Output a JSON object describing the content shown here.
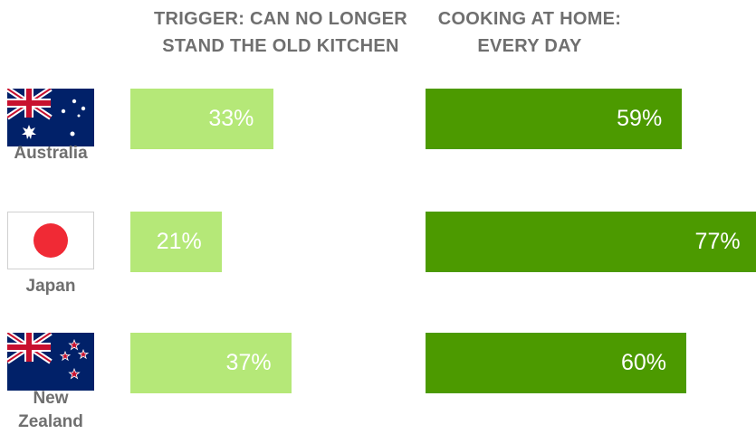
{
  "chart_data": [
    {
      "type": "bar",
      "orientation": "horizontal",
      "title": "TRIGGER: CAN NO LONGER\nSTAND THE OLD KITCHEN",
      "categories": [
        "Australia",
        "Japan",
        "New Zealand"
      ],
      "values": [
        33,
        21,
        37
      ],
      "value_labels": [
        "33%",
        "21%",
        "37%"
      ],
      "unit": "%",
      "color": "#b5e878",
      "xlim": [
        0,
        100
      ]
    },
    {
      "type": "bar",
      "orientation": "horizontal",
      "title": "COOKING AT HOME:\nEVERY DAY",
      "categories": [
        "Australia",
        "Japan",
        "New Zealand"
      ],
      "values": [
        59,
        77,
        60
      ],
      "value_labels": [
        "59%",
        "77%",
        "60%"
      ],
      "unit": "%",
      "color": "#4c9a00",
      "xlim": [
        0,
        100
      ]
    }
  ],
  "countries": [
    {
      "label": "Australia",
      "flag_icon": "australia-flag-icon"
    },
    {
      "label": "Japan",
      "flag_icon": "japan-flag-icon"
    },
    {
      "label": "New\nZealand",
      "flag_icon": "new-zealand-flag-icon"
    }
  ]
}
